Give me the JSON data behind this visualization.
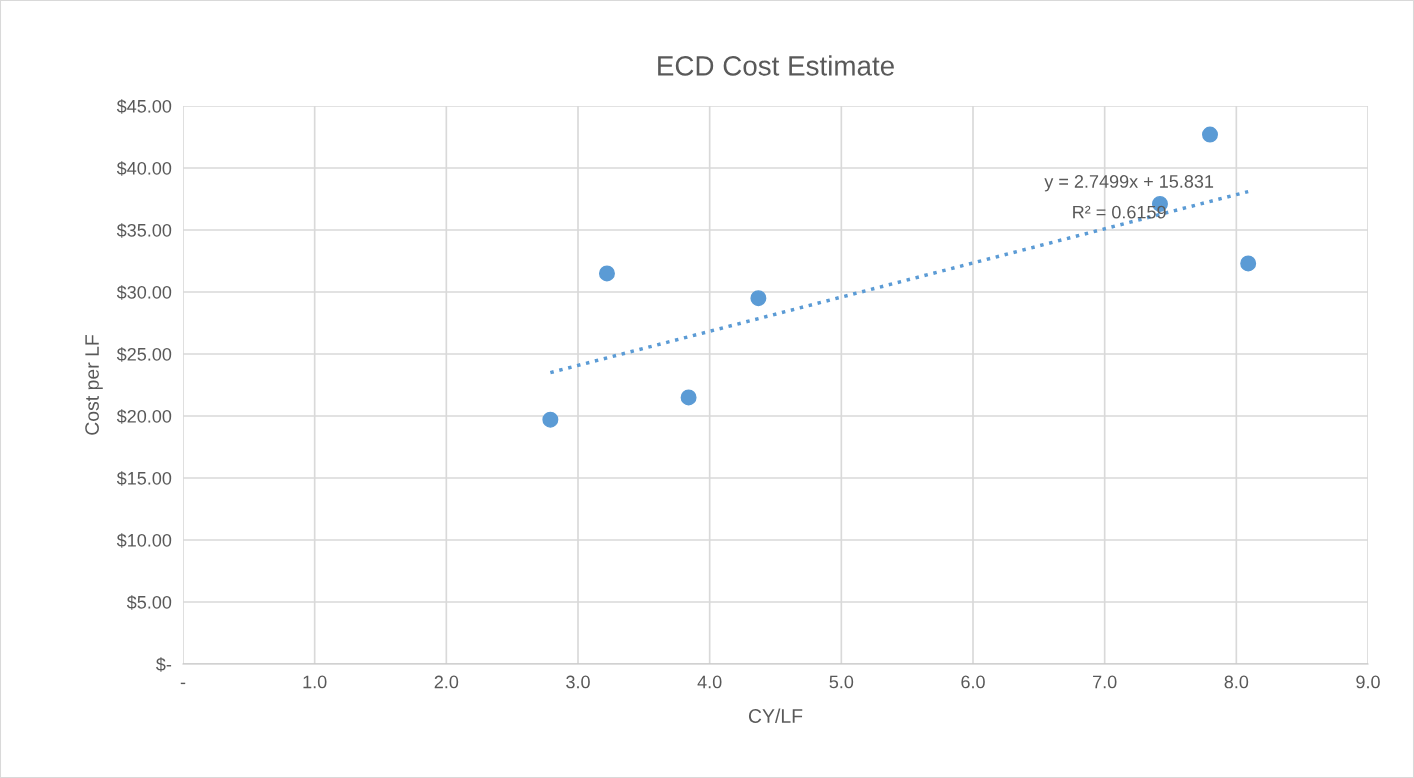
{
  "chart_data": {
    "type": "scatter",
    "title": "ECD Cost Estimate",
    "xlabel": "CY/LF",
    "ylabel": "Cost per LF",
    "series": [
      {
        "color": "#5b9bd5",
        "marker": "circle",
        "x": [
          2.79,
          3.22,
          3.84,
          4.37,
          7.42,
          7.8,
          8.09
        ],
        "values": [
          19.7,
          31.5,
          21.5,
          29.5,
          37.1,
          42.7,
          32.3
        ]
      },
      {
        "type": "line",
        "color": "#5b9bd5",
        "marker": "none",
        "line_style": "dotted",
        "x": [
          2.79,
          8.09
        ],
        "values": [
          23.5,
          38.1
        ]
      }
    ],
    "annotations": [
      "y = 2.7499x + 15.831",
      "R² = 0.6159"
    ],
    "xlim": [
      0,
      9
    ],
    "xticks": [
      {
        "value": 0,
        "label": "-"
      },
      {
        "value": 1,
        "label": "1.0"
      },
      {
        "value": 2,
        "label": "2.0"
      },
      {
        "value": 3,
        "label": "3.0"
      },
      {
        "value": 4,
        "label": "4.0"
      },
      {
        "value": 5,
        "label": "5.0"
      },
      {
        "value": 6,
        "label": "6.0"
      },
      {
        "value": 7,
        "label": "7.0"
      },
      {
        "value": 8,
        "label": "8.0"
      },
      {
        "value": 9,
        "label": "9.0"
      }
    ],
    "ylim": [
      0,
      45
    ],
    "yticks": [
      {
        "value": 0,
        "label": "$-"
      },
      {
        "value": 5,
        "label": "$5.00"
      },
      {
        "value": 10,
        "label": "$10.00"
      },
      {
        "value": 15,
        "label": "$15.00"
      },
      {
        "value": 20,
        "label": "$20.00"
      },
      {
        "value": 25,
        "label": "$25.00"
      },
      {
        "value": 30,
        "label": "$30.00"
      },
      {
        "value": 35,
        "label": "$35.00"
      },
      {
        "value": 40,
        "label": "$40.00"
      },
      {
        "value": 45,
        "label": "$45.00"
      }
    ],
    "grid": true,
    "legend": false
  }
}
